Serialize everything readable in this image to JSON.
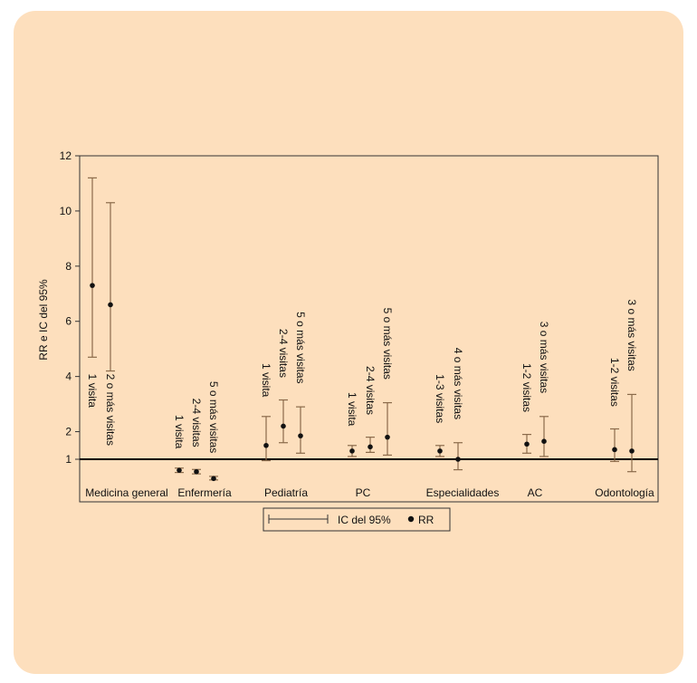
{
  "chart_data": {
    "type": "errorbar",
    "title": "",
    "xlabel": "",
    "ylabel": "RR e IC del 95%",
    "ylim": [
      0,
      12
    ],
    "yticks": [
      "1",
      "2",
      "4",
      "6",
      "8",
      "10",
      "12"
    ],
    "reference_line": 1,
    "grid": false,
    "legend": {
      "position": "bottom-center",
      "ci_label": "IC del 95%",
      "rr_label": "RR"
    },
    "colors": {
      "whisker": "#8a6a4a",
      "point": "#111111",
      "background": "#fddfbd"
    },
    "groups": [
      {
        "name": "Medicina general",
        "items": [
          {
            "label": "1 visita",
            "rr": 7.3,
            "lo": 4.7,
            "hi": 11.2
          },
          {
            "label": "2 o más visitas",
            "rr": 6.6,
            "lo": 4.2,
            "hi": 10.3
          }
        ]
      },
      {
        "name": "Enfermería",
        "items": [
          {
            "label": "1 visita",
            "rr": 0.6,
            "lo": 0.52,
            "hi": 0.68
          },
          {
            "label": "2-4 visitas",
            "rr": 0.55,
            "lo": 0.47,
            "hi": 0.63
          },
          {
            "label": "5 o más visitas",
            "rr": 0.3,
            "lo": 0.25,
            "hi": 0.38
          }
        ]
      },
      {
        "name": "Pediatría",
        "items": [
          {
            "label": "1 visita",
            "rr": 1.5,
            "lo": 0.95,
            "hi": 2.55
          },
          {
            "label": "2-4 visitas",
            "rr": 2.2,
            "lo": 1.6,
            "hi": 3.15
          },
          {
            "label": "5 o más visitas",
            "rr": 1.85,
            "lo": 1.22,
            "hi": 2.9
          }
        ]
      },
      {
        "name": "PC",
        "items": [
          {
            "label": "1 visita",
            "rr": 1.3,
            "lo": 1.1,
            "hi": 1.5
          },
          {
            "label": "2-4 visitas",
            "rr": 1.45,
            "lo": 1.25,
            "hi": 1.8
          },
          {
            "label": "5 o más visitas",
            "rr": 1.8,
            "lo": 1.15,
            "hi": 3.05
          }
        ]
      },
      {
        "name": "Especialidades",
        "items": [
          {
            "label": "1-3 visitas",
            "rr": 1.3,
            "lo": 1.1,
            "hi": 1.5
          },
          {
            "label": "4 o más visitas",
            "rr": 1.0,
            "lo": 0.62,
            "hi": 1.6
          }
        ]
      },
      {
        "name": "AC",
        "items": [
          {
            "label": "1-2 visitas",
            "rr": 1.55,
            "lo": 1.22,
            "hi": 1.9
          },
          {
            "label": "3 o más visitas",
            "rr": 1.65,
            "lo": 1.1,
            "hi": 2.55
          }
        ]
      },
      {
        "name": "Odontología",
        "items": [
          {
            "label": "1-2 visitas",
            "rr": 1.35,
            "lo": 0.92,
            "hi": 2.1
          },
          {
            "label": "3 o más visitas",
            "rr": 1.3,
            "lo": 0.55,
            "hi": 3.35
          }
        ]
      }
    ]
  }
}
